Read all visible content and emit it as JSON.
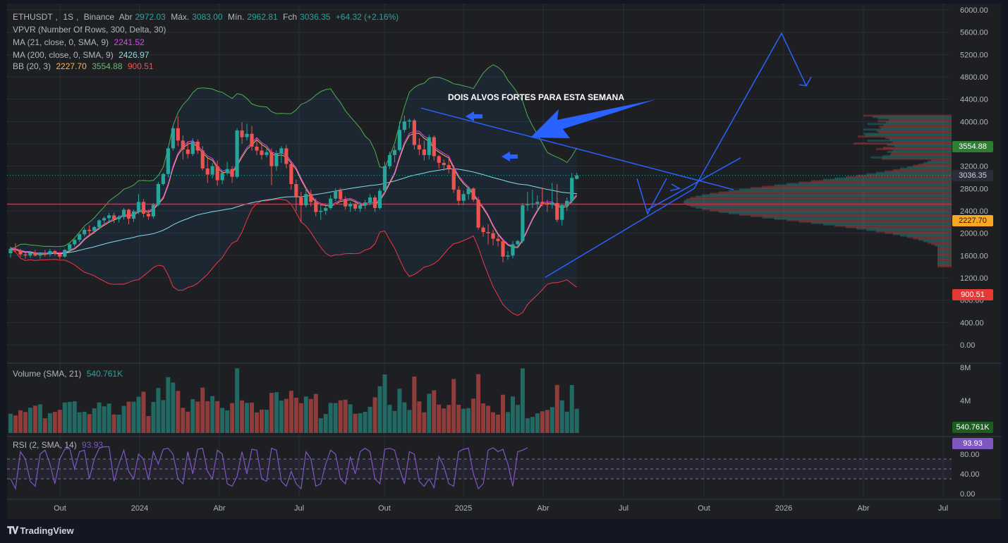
{
  "chart_data": {
    "type": "candlestick",
    "symbol": "ETHUSDT",
    "interval": "1S",
    "exchange": "Binance",
    "ohlc_header": {
      "open_label": "Abr",
      "open": "2972.03",
      "high_label": "Máx.",
      "high": "3083.00",
      "low_label": "Mín.",
      "low": "2962.81",
      "close_label": "Fch",
      "close": "3036.35",
      "change": "+64.32 (+2.16%)"
    },
    "x_ticks": [
      "Out",
      "2024",
      "Abr",
      "Jul",
      "Out",
      "2025",
      "Abr",
      "Jul",
      "Out",
      "2026",
      "Abr",
      "Jul"
    ],
    "y_ticks": [
      "6000.00",
      "5600.00",
      "5200.00",
      "4800.00",
      "4400.00",
      "4000.00",
      "3600.00",
      "3200.00",
      "2800.00",
      "2400.00",
      "2000.00",
      "1600.00",
      "1200.00",
      "800.00",
      "400.00",
      "0.00"
    ],
    "ylim": [
      0,
      6000
    ],
    "candles": [
      {
        "o": 1640,
        "h": 1760,
        "l": 1560,
        "c": 1720
      },
      {
        "o": 1720,
        "h": 1820,
        "l": 1660,
        "c": 1690
      },
      {
        "o": 1690,
        "h": 1720,
        "l": 1580,
        "c": 1620
      },
      {
        "o": 1620,
        "h": 1660,
        "l": 1540,
        "c": 1600
      },
      {
        "o": 1600,
        "h": 1680,
        "l": 1560,
        "c": 1650
      },
      {
        "o": 1650,
        "h": 1700,
        "l": 1580,
        "c": 1600
      },
      {
        "o": 1600,
        "h": 1660,
        "l": 1540,
        "c": 1640
      },
      {
        "o": 1640,
        "h": 1700,
        "l": 1580,
        "c": 1620
      },
      {
        "o": 1620,
        "h": 1720,
        "l": 1580,
        "c": 1680
      },
      {
        "o": 1680,
        "h": 1700,
        "l": 1600,
        "c": 1630
      },
      {
        "o": 1630,
        "h": 1660,
        "l": 1540,
        "c": 1580
      },
      {
        "o": 1580,
        "h": 1720,
        "l": 1560,
        "c": 1700
      },
      {
        "o": 1700,
        "h": 1820,
        "l": 1660,
        "c": 1800
      },
      {
        "o": 1800,
        "h": 1900,
        "l": 1760,
        "c": 1880
      },
      {
        "o": 1880,
        "h": 2000,
        "l": 1840,
        "c": 1980
      },
      {
        "o": 1980,
        "h": 2100,
        "l": 1940,
        "c": 2060
      },
      {
        "o": 2060,
        "h": 2140,
        "l": 1980,
        "c": 2040
      },
      {
        "o": 2040,
        "h": 2130,
        "l": 1990,
        "c": 2110
      },
      {
        "o": 2110,
        "h": 2250,
        "l": 2060,
        "c": 2230
      },
      {
        "o": 2230,
        "h": 2300,
        "l": 2150,
        "c": 2270
      },
      {
        "o": 2270,
        "h": 2360,
        "l": 2200,
        "c": 2320
      },
      {
        "o": 2320,
        "h": 2370,
        "l": 2180,
        "c": 2250
      },
      {
        "o": 2250,
        "h": 2320,
        "l": 2190,
        "c": 2290
      },
      {
        "o": 2290,
        "h": 2450,
        "l": 2240,
        "c": 2420
      },
      {
        "o": 2420,
        "h": 2440,
        "l": 2160,
        "c": 2260
      },
      {
        "o": 2260,
        "h": 2420,
        "l": 2200,
        "c": 2390
      },
      {
        "o": 2390,
        "h": 2700,
        "l": 2340,
        "c": 2560
      },
      {
        "o": 2560,
        "h": 2610,
        "l": 2280,
        "c": 2350
      },
      {
        "o": 2350,
        "h": 2420,
        "l": 2240,
        "c": 2300
      },
      {
        "o": 2300,
        "h": 2540,
        "l": 2260,
        "c": 2510
      },
      {
        "o": 2510,
        "h": 2920,
        "l": 2480,
        "c": 2880
      },
      {
        "o": 2880,
        "h": 3080,
        "l": 2850,
        "c": 3060
      },
      {
        "o": 3060,
        "h": 3550,
        "l": 3000,
        "c": 3520
      },
      {
        "o": 3520,
        "h": 3920,
        "l": 3480,
        "c": 3880
      },
      {
        "o": 3880,
        "h": 4090,
        "l": 3560,
        "c": 3660
      },
      {
        "o": 3660,
        "h": 3750,
        "l": 3320,
        "c": 3500
      },
      {
        "o": 3500,
        "h": 3650,
        "l": 3340,
        "c": 3420
      },
      {
        "o": 3420,
        "h": 3700,
        "l": 3380,
        "c": 3640
      },
      {
        "o": 3640,
        "h": 3680,
        "l": 3420,
        "c": 3480
      },
      {
        "o": 3480,
        "h": 3560,
        "l": 3120,
        "c": 3160
      },
      {
        "o": 3160,
        "h": 3340,
        "l": 2900,
        "c": 3050
      },
      {
        "o": 3050,
        "h": 3260,
        "l": 2980,
        "c": 3200
      },
      {
        "o": 3200,
        "h": 3300,
        "l": 2850,
        "c": 2950
      },
      {
        "o": 2950,
        "h": 3120,
        "l": 2880,
        "c": 3080
      },
      {
        "o": 3080,
        "h": 3280,
        "l": 3050,
        "c": 3150
      },
      {
        "o": 3150,
        "h": 3200,
        "l": 2900,
        "c": 3010
      },
      {
        "o": 3010,
        "h": 3880,
        "l": 2980,
        "c": 3840
      },
      {
        "o": 3840,
        "h": 3990,
        "l": 3600,
        "c": 3720
      },
      {
        "o": 3720,
        "h": 3960,
        "l": 3660,
        "c": 3780
      },
      {
        "o": 3780,
        "h": 3920,
        "l": 3480,
        "c": 3550
      },
      {
        "o": 3550,
        "h": 3700,
        "l": 3400,
        "c": 3480
      },
      {
        "o": 3480,
        "h": 3620,
        "l": 3320,
        "c": 3400
      },
      {
        "o": 3400,
        "h": 3540,
        "l": 3360,
        "c": 3450
      },
      {
        "o": 3450,
        "h": 3520,
        "l": 2860,
        "c": 3200
      },
      {
        "o": 3200,
        "h": 3480,
        "l": 3120,
        "c": 3430
      },
      {
        "o": 3430,
        "h": 3560,
        "l": 3260,
        "c": 3520
      },
      {
        "o": 3520,
        "h": 3580,
        "l": 3160,
        "c": 3240
      },
      {
        "o": 3240,
        "h": 3280,
        "l": 2780,
        "c": 2880
      },
      {
        "o": 2880,
        "h": 2960,
        "l": 2400,
        "c": 2640
      },
      {
        "o": 2640,
        "h": 2740,
        "l": 2200,
        "c": 2500
      },
      {
        "o": 2500,
        "h": 2820,
        "l": 2460,
        "c": 2700
      },
      {
        "o": 2700,
        "h": 2780,
        "l": 2480,
        "c": 2560
      },
      {
        "o": 2560,
        "h": 2620,
        "l": 2300,
        "c": 2380
      },
      {
        "o": 2380,
        "h": 2500,
        "l": 2240,
        "c": 2400
      },
      {
        "o": 2400,
        "h": 2520,
        "l": 2330,
        "c": 2450
      },
      {
        "o": 2450,
        "h": 2680,
        "l": 2420,
        "c": 2620
      },
      {
        "o": 2620,
        "h": 2800,
        "l": 2580,
        "c": 2760
      },
      {
        "o": 2760,
        "h": 2810,
        "l": 2580,
        "c": 2610
      },
      {
        "o": 2610,
        "h": 2660,
        "l": 2420,
        "c": 2480
      },
      {
        "o": 2480,
        "h": 2560,
        "l": 2380,
        "c": 2520
      },
      {
        "o": 2520,
        "h": 2580,
        "l": 2400,
        "c": 2440
      },
      {
        "o": 2440,
        "h": 2560,
        "l": 2380,
        "c": 2500
      },
      {
        "o": 2500,
        "h": 2600,
        "l": 2430,
        "c": 2550
      },
      {
        "o": 2550,
        "h": 2700,
        "l": 2500,
        "c": 2640
      },
      {
        "o": 2640,
        "h": 2680,
        "l": 2380,
        "c": 2450
      },
      {
        "o": 2450,
        "h": 2800,
        "l": 2420,
        "c": 2760
      },
      {
        "o": 2760,
        "h": 3280,
        "l": 2700,
        "c": 3200
      },
      {
        "o": 3200,
        "h": 3460,
        "l": 3150,
        "c": 3400
      },
      {
        "o": 3400,
        "h": 3560,
        "l": 3270,
        "c": 3490
      },
      {
        "o": 3490,
        "h": 4000,
        "l": 3460,
        "c": 3850
      },
      {
        "o": 3850,
        "h": 4110,
        "l": 3800,
        "c": 4000
      },
      {
        "o": 4000,
        "h": 4050,
        "l": 3880,
        "c": 4020
      },
      {
        "o": 4020,
        "h": 4050,
        "l": 3500,
        "c": 3580
      },
      {
        "o": 3580,
        "h": 3700,
        "l": 3400,
        "c": 3500
      },
      {
        "o": 3500,
        "h": 3660,
        "l": 3300,
        "c": 3400
      },
      {
        "o": 3400,
        "h": 3760,
        "l": 3320,
        "c": 3720
      },
      {
        "o": 3720,
        "h": 3750,
        "l": 3300,
        "c": 3380
      },
      {
        "o": 3380,
        "h": 3400,
        "l": 3160,
        "c": 3260
      },
      {
        "o": 3260,
        "h": 3320,
        "l": 3120,
        "c": 3220
      },
      {
        "o": 3220,
        "h": 3370,
        "l": 3070,
        "c": 3160
      },
      {
        "o": 3160,
        "h": 3220,
        "l": 2720,
        "c": 2780
      },
      {
        "o": 2780,
        "h": 2840,
        "l": 2500,
        "c": 2580
      },
      {
        "o": 2580,
        "h": 2760,
        "l": 2500,
        "c": 2700
      },
      {
        "o": 2700,
        "h": 2820,
        "l": 2600,
        "c": 2800
      },
      {
        "o": 2800,
        "h": 2820,
        "l": 2560,
        "c": 2600
      },
      {
        "o": 2600,
        "h": 2650,
        "l": 2060,
        "c": 2100
      },
      {
        "o": 2100,
        "h": 2140,
        "l": 1940,
        "c": 2020
      },
      {
        "o": 2020,
        "h": 2160,
        "l": 1800,
        "c": 2000
      },
      {
        "o": 2000,
        "h": 2060,
        "l": 1780,
        "c": 1900
      },
      {
        "o": 1900,
        "h": 1960,
        "l": 1760,
        "c": 1860
      },
      {
        "o": 1860,
        "h": 1900,
        "l": 1480,
        "c": 1580
      },
      {
        "o": 1580,
        "h": 1680,
        "l": 1520,
        "c": 1600
      },
      {
        "o": 1600,
        "h": 1860,
        "l": 1550,
        "c": 1800
      },
      {
        "o": 1800,
        "h": 1880,
        "l": 1740,
        "c": 1860
      },
      {
        "o": 1860,
        "h": 2540,
        "l": 1820,
        "c": 2500
      },
      {
        "o": 2500,
        "h": 2740,
        "l": 2400,
        "c": 2520
      },
      {
        "o": 2520,
        "h": 2780,
        "l": 2450,
        "c": 2530
      },
      {
        "o": 2530,
        "h": 2680,
        "l": 2400,
        "c": 2560
      },
      {
        "o": 2560,
        "h": 2820,
        "l": 2480,
        "c": 2530
      },
      {
        "o": 2530,
        "h": 2600,
        "l": 2380,
        "c": 2510
      },
      {
        "o": 2510,
        "h": 2900,
        "l": 2440,
        "c": 2540
      },
      {
        "o": 2540,
        "h": 2880,
        "l": 2200,
        "c": 2240
      },
      {
        "o": 2240,
        "h": 2530,
        "l": 2140,
        "c": 2500
      },
      {
        "o": 2500,
        "h": 2640,
        "l": 2400,
        "c": 2580
      },
      {
        "o": 2580,
        "h": 3080,
        "l": 2540,
        "c": 2990
      },
      {
        "o": 2972.03,
        "h": 3083,
        "l": 2962.81,
        "c": 3036.35
      }
    ],
    "indicators": {
      "vpvr": "VPVR (Number Of Rows, 300, Delta, 30)",
      "ma21": {
        "label": "MA (21, close, 0, SMA, 9)",
        "value": "2241.52",
        "color": "#e040fb"
      },
      "ma200": {
        "label": "MA (200, close, 0, SMA, 9)",
        "value": "2426.97",
        "color": "#80deea"
      },
      "bb": {
        "label": "BB (20, 3)",
        "basis": "2227.70",
        "upper": "3554.88",
        "lower": "900.51"
      }
    },
    "price_tags": {
      "upper": "3554.88",
      "last": "3036.35",
      "basis": "2227.70",
      "lower": "900.51"
    },
    "horizontal_line": 2520,
    "volume": {
      "label": "Volume (SMA, 21)",
      "value": "540.761K",
      "tag": "540.761K",
      "ticks": [
        "8M",
        "4M"
      ],
      "ymax": 8000000
    },
    "rsi": {
      "label": "RSI (2, SMA, 14)",
      "value": "93.93",
      "tag": "93.93",
      "ticks": [
        "80.00",
        "40.00",
        "0.00"
      ],
      "values": [
        30,
        10,
        85,
        70,
        25,
        15,
        80,
        88,
        60,
        20,
        70,
        90,
        92,
        50,
        85,
        88,
        30,
        70,
        92,
        95,
        95,
        25,
        60,
        88,
        45,
        30,
        80,
        70,
        28,
        85,
        60,
        90,
        92,
        80,
        30,
        20,
        85,
        40,
        90,
        92,
        45,
        30,
        88,
        80,
        20,
        15,
        35,
        85,
        40,
        90,
        88,
        30,
        25,
        92,
        88,
        25,
        15,
        45,
        20,
        10,
        85,
        70,
        15,
        20,
        60,
        88,
        80,
        30,
        20,
        75,
        40,
        85,
        92,
        85,
        30,
        20,
        90,
        92,
        88,
        50,
        20,
        85,
        80,
        25,
        15,
        30,
        12,
        75,
        55,
        20,
        15,
        85,
        90,
        92,
        40,
        10,
        20,
        88,
        93,
        85,
        90,
        60,
        15,
        85,
        88,
        93
      ]
    },
    "annotation": "DOIS ALVOS FORTES PARA ESTA SEMANA"
  },
  "footer": {
    "brand": "TradingView"
  },
  "colors": {
    "bull": "#26a69a",
    "bear": "#ef5350",
    "bg": "#1e1f23",
    "drawing": "#2962ff"
  }
}
